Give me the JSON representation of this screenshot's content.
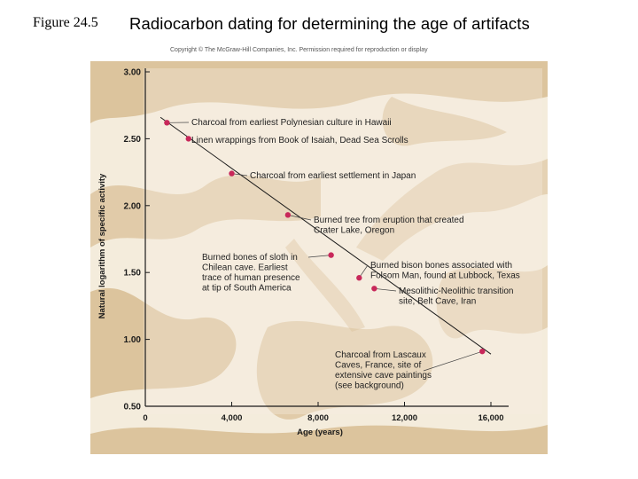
{
  "header": {
    "figure_label": "Figure 24.5",
    "title": "Radiocarbon dating for determining the age of artifacts",
    "copyright": "Copyright © The McGraw-Hill Companies, Inc. Permission required for reproduction or display"
  },
  "chart_data": {
    "type": "scatter",
    "xlabel": "Age (years)",
    "ylabel": "Natural logarithm of specific activity",
    "xlim": [
      0,
      16000
    ],
    "ylim": [
      0.5,
      3.0
    ],
    "x_ticks": [
      0,
      4000,
      8000,
      12000,
      16000
    ],
    "x_tick_labels": [
      "0",
      "4,000",
      "8,000",
      "12,000",
      "16,000"
    ],
    "y_ticks": [
      0.5,
      1.0,
      1.5,
      2.0,
      2.5,
      3.0
    ],
    "y_tick_labels": [
      "0.50",
      "1.00",
      "1.50",
      "2.00",
      "2.50",
      "3.00"
    ],
    "trend_line": {
      "x": [
        700,
        16000
      ],
      "y": [
        2.66,
        0.89
      ]
    },
    "points": [
      {
        "x": 1000,
        "y": 2.62,
        "label": [
          "Charcoal from earliest Polynesian culture in Hawaii"
        ]
      },
      {
        "x": 2000,
        "y": 2.5,
        "label": [
          "Linen wrappings from Book of Isaiah, Dead Sea Scrolls"
        ]
      },
      {
        "x": 4000,
        "y": 2.24,
        "label": [
          "Charcoal from earliest settlement in Japan"
        ]
      },
      {
        "x": 6600,
        "y": 1.93,
        "label": [
          "Burned tree from eruption that created",
          "Crater Lake, Oregon"
        ]
      },
      {
        "x": 8600,
        "y": 1.63,
        "label": [
          "Burned bones of sloth in",
          "Chilean cave. Earliest",
          "trace of human presence",
          "at tip of South America"
        ]
      },
      {
        "x": 9900,
        "y": 1.46,
        "label": [
          "Burned bison bones associated with",
          "Folsom Man, found at Lubbock, Texas"
        ]
      },
      {
        "x": 10600,
        "y": 1.38,
        "label": [
          "Mesolithic-Neolithic transition",
          "site, Belt Cave, Iran"
        ]
      },
      {
        "x": 15600,
        "y": 0.91,
        "label": [
          "Charcoal from Lascaux",
          "Caves, France, site of",
          "extensive cave paintings",
          "(see background)"
        ]
      }
    ],
    "grid": false,
    "legend": "none",
    "colors": {
      "point": "#c8285a",
      "line": "#1a1a1a",
      "background": "#f4ecdc",
      "texture": "#c9a46a"
    }
  }
}
